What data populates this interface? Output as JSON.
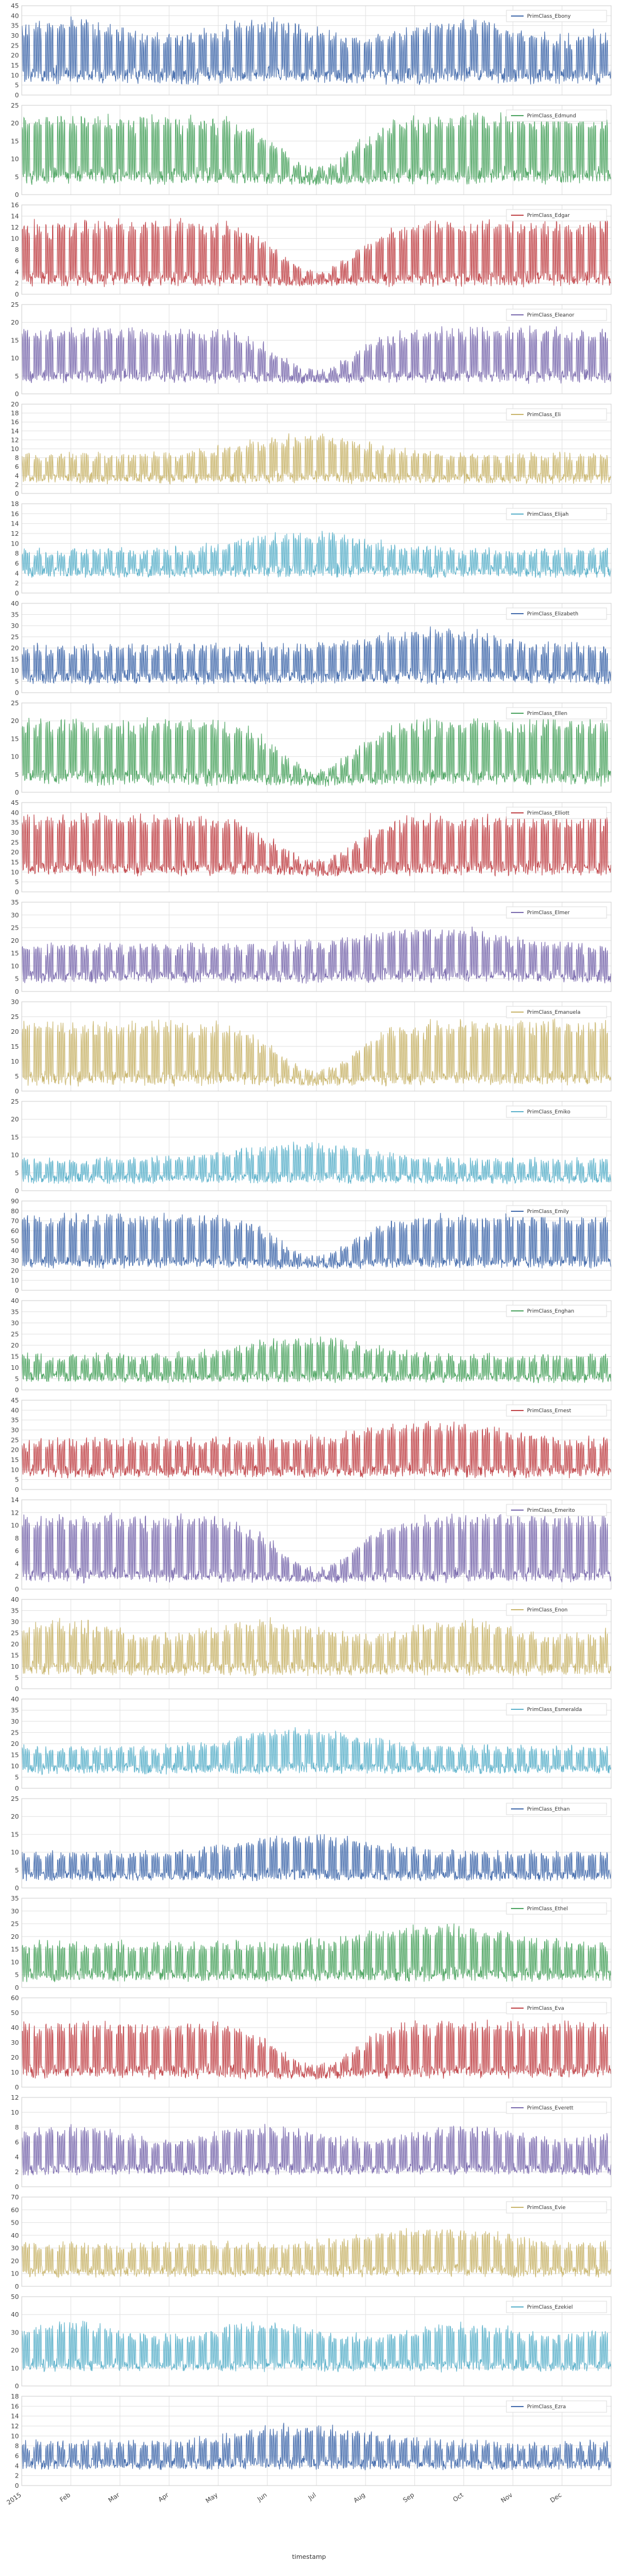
{
  "figure": {
    "xlabel": "timestamp",
    "x_ticks": [
      "2015",
      "Feb",
      "Mar",
      "Apr",
      "May",
      "Jun",
      "Jul",
      "Aug",
      "Sep",
      "Oct",
      "Nov",
      "Dec"
    ],
    "grid": true,
    "legend_placement": "top-right"
  },
  "chart_data": [
    {
      "type": "line",
      "series": [
        {
          "name": "PrimClass_Ebony",
          "color": "#4c72b0"
        }
      ],
      "ylim": [
        0,
        45
      ],
      "yticks": [
        0,
        5,
        10,
        15,
        20,
        25,
        30,
        35,
        40,
        45
      ],
      "profile": "steady",
      "base": 8,
      "amp": 30,
      "noise": 6,
      "seed": 1
    },
    {
      "type": "line",
      "series": [
        {
          "name": "PrimClass_Edmund",
          "color": "#55a868"
        }
      ],
      "ylim": [
        0,
        25
      ],
      "yticks": [
        0,
        5,
        10,
        15,
        20,
        25
      ],
      "profile": "summer_low",
      "base": 4,
      "amp": 18,
      "noise": 3,
      "seed": 2
    },
    {
      "type": "line",
      "series": [
        {
          "name": "PrimClass_Edgar",
          "color": "#c44e52"
        }
      ],
      "ylim": [
        0,
        16
      ],
      "yticks": [
        0,
        2,
        4,
        6,
        8,
        10,
        12,
        14,
        16
      ],
      "profile": "summer_low",
      "base": 2,
      "amp": 11,
      "noise": 1.5,
      "seed": 3
    },
    {
      "type": "line",
      "series": [
        {
          "name": "PrimClass_Eleanor",
          "color": "#8172b2"
        }
      ],
      "ylim": [
        0,
        25
      ],
      "yticks": [
        0,
        5,
        10,
        15,
        20,
        25
      ],
      "profile": "summer_low",
      "base": 4,
      "amp": 14,
      "noise": 2.5,
      "seed": 4
    },
    {
      "type": "line",
      "series": [
        {
          "name": "PrimClass_Eli",
          "color": "#ccb974"
        }
      ],
      "ylim": [
        0,
        20
      ],
      "yticks": [
        0,
        2,
        4,
        6,
        8,
        10,
        12,
        14,
        16,
        18,
        20
      ],
      "profile": "summer_high",
      "base": 3,
      "amp": 10,
      "noise": 2,
      "seed": 5
    },
    {
      "type": "line",
      "series": [
        {
          "name": "PrimClass_Elijah",
          "color": "#64b5cd"
        }
      ],
      "ylim": [
        0,
        18
      ],
      "yticks": [
        0,
        2,
        4,
        6,
        8,
        10,
        12,
        14,
        16,
        18
      ],
      "profile": "summer_high",
      "base": 4,
      "amp": 8,
      "noise": 2,
      "seed": 6
    },
    {
      "type": "line",
      "series": [
        {
          "name": "PrimClass_Elizabeth",
          "color": "#4c72b0"
        }
      ],
      "ylim": [
        0,
        40
      ],
      "yticks": [
        0,
        5,
        10,
        15,
        20,
        25,
        30,
        35,
        40
      ],
      "profile": "autumn_high",
      "base": 6,
      "amp": 22,
      "noise": 5,
      "seed": 7
    },
    {
      "type": "line",
      "series": [
        {
          "name": "PrimClass_Ellen",
          "color": "#55a868"
        }
      ],
      "ylim": [
        0,
        25
      ],
      "yticks": [
        0,
        5,
        10,
        15,
        20,
        25
      ],
      "profile": "summer_low",
      "base": 3,
      "amp": 17,
      "noise": 3,
      "seed": 8
    },
    {
      "type": "line",
      "series": [
        {
          "name": "PrimClass_Elliott",
          "color": "#c44e52"
        }
      ],
      "ylim": [
        0,
        45
      ],
      "yticks": [
        0,
        5,
        10,
        15,
        20,
        25,
        30,
        35,
        40,
        45
      ],
      "profile": "summer_low",
      "base": 10,
      "amp": 28,
      "noise": 5,
      "seed": 9
    },
    {
      "type": "line",
      "series": [
        {
          "name": "PrimClass_Elmer",
          "color": "#8172b2"
        }
      ],
      "ylim": [
        0,
        35
      ],
      "yticks": [
        0,
        5,
        10,
        15,
        20,
        25,
        30,
        35
      ],
      "profile": "autumn_high",
      "base": 5,
      "amp": 20,
      "noise": 4,
      "seed": 10
    },
    {
      "type": "line",
      "series": [
        {
          "name": "PrimClass_Emanuela",
          "color": "#ccb974"
        }
      ],
      "ylim": [
        0,
        30
      ],
      "yticks": [
        0,
        5,
        10,
        15,
        20,
        25,
        30
      ],
      "profile": "summer_low",
      "base": 3,
      "amp": 20,
      "noise": 3,
      "seed": 11
    },
    {
      "type": "line",
      "series": [
        {
          "name": "PrimClass_Emiko",
          "color": "#64b5cd"
        }
      ],
      "ylim": [
        0,
        25
      ],
      "yticks": [
        0,
        5,
        10,
        15,
        20,
        25
      ],
      "profile": "summer_high",
      "base": 3,
      "amp": 10,
      "noise": 2.5,
      "seed": 12
    },
    {
      "type": "line",
      "series": [
        {
          "name": "PrimClass_Emily",
          "color": "#4c72b0"
        }
      ],
      "ylim": [
        0,
        90
      ],
      "yticks": [
        0,
        10,
        20,
        30,
        40,
        50,
        60,
        70,
        80,
        90
      ],
      "profile": "summer_low",
      "base": 25,
      "amp": 50,
      "noise": 8,
      "seed": 13
    },
    {
      "type": "line",
      "series": [
        {
          "name": "PrimClass_Enghan",
          "color": "#55a868"
        }
      ],
      "ylim": [
        0,
        40
      ],
      "yticks": [
        0,
        5,
        10,
        15,
        20,
        25,
        30,
        35,
        40
      ],
      "profile": "summer_high",
      "base": 5,
      "amp": 18,
      "noise": 4,
      "seed": 14
    },
    {
      "type": "line",
      "series": [
        {
          "name": "PrimClass_Ernest",
          "color": "#c44e52"
        }
      ],
      "ylim": [
        0,
        45
      ],
      "yticks": [
        0,
        5,
        10,
        15,
        20,
        25,
        30,
        35,
        40,
        45
      ],
      "profile": "autumn_high",
      "base": 8,
      "amp": 26,
      "noise": 5,
      "seed": 15
    },
    {
      "type": "line",
      "series": [
        {
          "name": "PrimClass_Emerito",
          "color": "#8172b2"
        }
      ],
      "ylim": [
        0,
        14
      ],
      "yticks": [
        0,
        2,
        4,
        6,
        8,
        10,
        12,
        14
      ],
      "profile": "summer_low",
      "base": 1.5,
      "amp": 10,
      "noise": 1.2,
      "seed": 16
    },
    {
      "type": "line",
      "series": [
        {
          "name": "PrimClass_Enon",
          "color": "#ccb974"
        }
      ],
      "ylim": [
        0,
        40
      ],
      "yticks": [
        0,
        5,
        10,
        15,
        20,
        25,
        30,
        35,
        40
      ],
      "profile": "steady",
      "base": 8,
      "amp": 22,
      "noise": 5,
      "seed": 17
    },
    {
      "type": "line",
      "series": [
        {
          "name": "PrimClass_Esmeralda",
          "color": "#64b5cd"
        }
      ],
      "ylim": [
        0,
        40
      ],
      "yticks": [
        0,
        5,
        10,
        15,
        20,
        25,
        30,
        35,
        40
      ],
      "profile": "summer_high",
      "base": 8,
      "amp": 18,
      "noise": 4,
      "seed": 18
    },
    {
      "type": "line",
      "series": [
        {
          "name": "PrimClass_Ethan",
          "color": "#4c72b0"
        }
      ],
      "ylim": [
        0,
        25
      ],
      "yticks": [
        0,
        5,
        10,
        15,
        20,
        25
      ],
      "profile": "summer_high",
      "base": 3,
      "amp": 12,
      "noise": 2.5,
      "seed": 19
    },
    {
      "type": "line",
      "series": [
        {
          "name": "PrimClass_Ethel",
          "color": "#55a868"
        }
      ],
      "ylim": [
        0,
        35
      ],
      "yticks": [
        0,
        5,
        10,
        15,
        20,
        25,
        30,
        35
      ],
      "profile": "autumn_high",
      "base": 4,
      "amp": 20,
      "noise": 4,
      "seed": 20
    },
    {
      "type": "line",
      "series": [
        {
          "name": "PrimClass_Eva",
          "color": "#c44e52"
        }
      ],
      "ylim": [
        0,
        60
      ],
      "yticks": [
        0,
        10,
        20,
        30,
        40,
        50,
        60
      ],
      "profile": "summer_low",
      "base": 8,
      "amp": 35,
      "noise": 6,
      "seed": 21
    },
    {
      "type": "line",
      "series": [
        {
          "name": "PrimClass_Everett",
          "color": "#8172b2"
        }
      ],
      "ylim": [
        0,
        12
      ],
      "yticks": [
        0,
        2,
        4,
        6,
        8,
        10,
        12
      ],
      "profile": "steady",
      "base": 2,
      "amp": 6,
      "noise": 1.2,
      "seed": 22
    },
    {
      "type": "line",
      "series": [
        {
          "name": "PrimClass_Evie",
          "color": "#ccb974"
        }
      ],
      "ylim": [
        0,
        70
      ],
      "yticks": [
        0,
        10,
        20,
        30,
        40,
        50,
        60,
        70
      ],
      "profile": "autumn_high",
      "base": 10,
      "amp": 35,
      "noise": 7,
      "seed": 23
    },
    {
      "type": "line",
      "series": [
        {
          "name": "PrimClass_Ezekiel",
          "color": "#64b5cd"
        }
      ],
      "ylim": [
        0,
        50
      ],
      "yticks": [
        0,
        10,
        20,
        30,
        40,
        50
      ],
      "profile": "steady",
      "base": 10,
      "amp": 25,
      "noise": 5,
      "seed": 24
    },
    {
      "type": "line",
      "series": [
        {
          "name": "PrimClass_Ezra",
          "color": "#4c72b0"
        }
      ],
      "ylim": [
        0,
        18
      ],
      "yticks": [
        0,
        2,
        4,
        6,
        8,
        10,
        12,
        14,
        16,
        18
      ],
      "profile": "summer_high",
      "base": 4,
      "amp": 8,
      "noise": 2,
      "seed": 25
    }
  ]
}
